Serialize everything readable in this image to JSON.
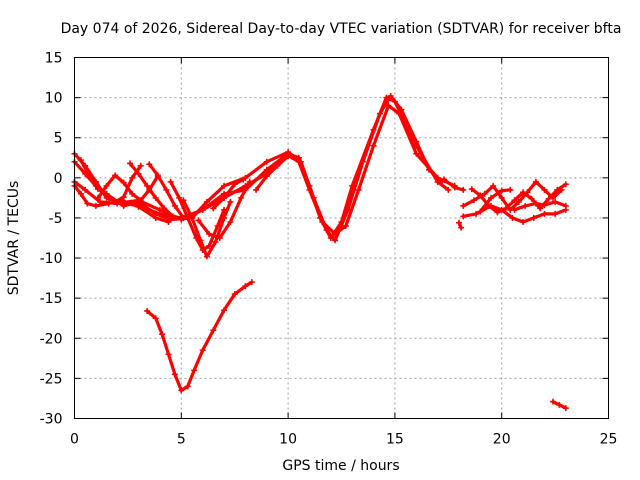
{
  "chart_data": {
    "type": "scatter",
    "title": "Day 074 of 2026, Sidereal Day-to-day VTEC variation (SDTVAR) for receiver bfta",
    "xlabel": "GPS time / hours",
    "ylabel": "SDTVAR / TECUs",
    "xlim": [
      0,
      25
    ],
    "ylim": [
      -30,
      15
    ],
    "xticks": [
      0,
      5,
      10,
      15,
      20,
      25
    ],
    "yticks": [
      15,
      10,
      5,
      0,
      -5,
      -10,
      -15,
      -20,
      -25,
      -30
    ],
    "grid": true,
    "legend": "none",
    "color": "#ff0000",
    "series": [
      {
        "name": "trace-1",
        "points": [
          [
            0,
            3
          ],
          [
            0.5,
            1.5
          ],
          [
            1,
            -0.5
          ],
          [
            1.5,
            -2.5
          ],
          [
            2,
            -3
          ],
          [
            3,
            -3.5
          ],
          [
            4,
            -4.5
          ],
          [
            5,
            -5
          ],
          [
            6,
            -4
          ],
          [
            7,
            -2
          ],
          [
            8,
            -1.5
          ],
          [
            9,
            1
          ],
          [
            10,
            3
          ],
          [
            10.5,
            2.5
          ],
          [
            11,
            -1
          ],
          [
            11.5,
            -5
          ],
          [
            12,
            -7.5
          ],
          [
            12.5,
            -5.5
          ],
          [
            13,
            -1
          ],
          [
            14,
            6
          ],
          [
            14.6,
            10
          ],
          [
            15,
            9.5
          ],
          [
            16,
            4
          ],
          [
            17,
            -0.5
          ],
          [
            17.5,
            -1.5
          ]
        ]
      },
      {
        "name": "trace-2",
        "points": [
          [
            0,
            2
          ],
          [
            0.5,
            0.5
          ],
          [
            1,
            -1
          ],
          [
            1.5,
            -2
          ],
          [
            2.3,
            -3.5
          ],
          [
            3,
            -3
          ],
          [
            3.8,
            -4.5
          ],
          [
            4.5,
            -5.2
          ],
          [
            5.5,
            -5
          ],
          [
            6.2,
            -3
          ],
          [
            7,
            -1
          ],
          [
            8,
            0
          ],
          [
            9,
            2
          ],
          [
            10,
            3.2
          ],
          [
            10.6,
            2
          ],
          [
            11.2,
            -2.5
          ],
          [
            11.8,
            -6.5
          ],
          [
            12.2,
            -7.8
          ],
          [
            12.8,
            -4
          ],
          [
            13.5,
            2
          ],
          [
            14.3,
            8
          ],
          [
            14.8,
            10.2
          ],
          [
            15.3,
            8.5
          ],
          [
            16,
            4.5
          ],
          [
            16.6,
            1
          ],
          [
            17.2,
            -0.5
          ]
        ]
      },
      {
        "name": "trace-3",
        "points": [
          [
            0,
            -0.5
          ],
          [
            0.5,
            -1.5
          ],
          [
            1.2,
            -3
          ],
          [
            2,
            -3.2
          ],
          [
            3,
            -2.8
          ],
          [
            4,
            -4
          ],
          [
            5,
            -5.2
          ],
          [
            6,
            -4
          ],
          [
            7,
            -2.5
          ],
          [
            8,
            -1
          ],
          [
            9,
            0.5
          ],
          [
            10,
            2.8
          ],
          [
            10.5,
            2
          ],
          [
            11,
            -1.5
          ],
          [
            11.6,
            -5.5
          ],
          [
            12.2,
            -7
          ],
          [
            12.7,
            -6
          ],
          [
            13.3,
            -1.5
          ],
          [
            14,
            4
          ],
          [
            14.7,
            9
          ],
          [
            15.2,
            8
          ],
          [
            16,
            3
          ],
          [
            17,
            0
          ],
          [
            17.8,
            -1
          ]
        ]
      },
      {
        "name": "trace-4",
        "points": [
          [
            0,
            -1
          ],
          [
            0.3,
            -2
          ],
          [
            0.6,
            -3.2
          ],
          [
            1,
            -3.5
          ],
          [
            1.6,
            -3.2
          ],
          [
            2.2,
            -2.8
          ],
          [
            3,
            -3.6
          ],
          [
            3.8,
            -5
          ],
          [
            4.4,
            -5.5
          ]
        ]
      },
      {
        "name": "trace-5",
        "points": [
          [
            0.3,
            2.2
          ],
          [
            0.7,
            0.2
          ],
          [
            1.1,
            -1.4
          ],
          [
            1.5,
            -2
          ],
          [
            1.9,
            -3
          ],
          [
            2.3,
            -2.4
          ],
          [
            2.7,
            0
          ],
          [
            3.1,
            1.5
          ]
        ]
      },
      {
        "name": "trace-6",
        "points": [
          [
            1.1,
            -2.5
          ],
          [
            1.5,
            -1
          ],
          [
            1.9,
            0.3
          ],
          [
            2.3,
            -0.6
          ],
          [
            2.7,
            -2
          ],
          [
            3.1,
            -2.8
          ],
          [
            3.5,
            -1.5
          ],
          [
            3.9,
            0.2
          ]
        ]
      },
      {
        "name": "trace-7",
        "points": [
          [
            2.6,
            1.8
          ],
          [
            3,
            0.5
          ],
          [
            3.4,
            -1
          ],
          [
            3.8,
            -2.5
          ],
          [
            4.2,
            -3.8
          ],
          [
            4.6,
            -4.8
          ],
          [
            5,
            -5.2
          ]
        ]
      },
      {
        "name": "trace-8",
        "points": [
          [
            3.5,
            1.7
          ],
          [
            3.9,
            0.3
          ],
          [
            4.3,
            -1.5
          ],
          [
            4.7,
            -3.5
          ],
          [
            5.1,
            -5
          ]
        ]
      },
      {
        "name": "trace-9",
        "points": [
          [
            4.5,
            -0.5
          ],
          [
            4.9,
            -2.5
          ],
          [
            5.3,
            -5
          ],
          [
            5.7,
            -7.5
          ],
          [
            6,
            -9
          ],
          [
            6.3,
            -8.5
          ],
          [
            6.7,
            -6
          ],
          [
            7,
            -4
          ]
        ]
      },
      {
        "name": "trace-10",
        "points": [
          [
            5.1,
            -2.8
          ],
          [
            5.5,
            -5
          ],
          [
            5.9,
            -7.8
          ],
          [
            6.2,
            -9.8
          ],
          [
            6.6,
            -8
          ],
          [
            7,
            -5
          ],
          [
            7.3,
            -3
          ]
        ]
      },
      {
        "name": "trace-11",
        "points": [
          [
            5.8,
            -5.3
          ],
          [
            6.3,
            -7
          ],
          [
            6.8,
            -7.5
          ],
          [
            7.3,
            -5.5
          ],
          [
            7.8,
            -2.5
          ],
          [
            8.2,
            -0.5
          ]
        ]
      },
      {
        "name": "trace-12",
        "points": [
          [
            6.5,
            -3.8
          ],
          [
            7,
            -2.5
          ],
          [
            7.5,
            -0.8
          ],
          [
            7.9,
            -0.2
          ]
        ]
      },
      {
        "name": "trace-13",
        "points": [
          [
            8.5,
            -1.5
          ],
          [
            9,
            0.2
          ],
          [
            9.5,
            1.5
          ],
          [
            10,
            2.7
          ],
          [
            10.2,
            2.6
          ]
        ]
      },
      {
        "name": "trace-14",
        "points": [
          [
            17.3,
            -0.2
          ],
          [
            17.8,
            -1.2
          ],
          [
            18.2,
            -1.5
          ]
        ]
      },
      {
        "name": "trace-15",
        "points": [
          [
            18,
            -5.6
          ],
          [
            18.1,
            -6.2
          ]
        ]
      },
      {
        "name": "trace-16",
        "points": [
          [
            18.2,
            -4.8
          ],
          [
            18.8,
            -4.5
          ],
          [
            19.5,
            -3.5
          ],
          [
            20,
            -4
          ],
          [
            20.5,
            -5
          ],
          [
            21,
            -5.5
          ],
          [
            21.5,
            -5
          ],
          [
            22,
            -4.5
          ],
          [
            22.5,
            -4.5
          ],
          [
            23,
            -4
          ]
        ]
      },
      {
        "name": "trace-17",
        "points": [
          [
            18.2,
            -3.5
          ],
          [
            18.7,
            -2.8
          ],
          [
            19.2,
            -2
          ],
          [
            19.6,
            -1
          ],
          [
            20,
            -2.5
          ],
          [
            20.4,
            -4
          ],
          [
            20.8,
            -3
          ],
          [
            21.2,
            -1.8
          ],
          [
            21.6,
            -0.5
          ],
          [
            22,
            -1.5
          ],
          [
            22.4,
            -2.5
          ],
          [
            22.8,
            -1.5
          ]
        ]
      },
      {
        "name": "trace-18",
        "points": [
          [
            18.6,
            -1.4
          ],
          [
            19,
            -2.2
          ],
          [
            19.4,
            -3.5
          ],
          [
            19.8,
            -4.3
          ],
          [
            20.2,
            -3.8
          ],
          [
            20.6,
            -2.8
          ],
          [
            21,
            -1.8
          ],
          [
            21.4,
            -2.6
          ],
          [
            21.8,
            -3.8
          ],
          [
            22.2,
            -2.6
          ],
          [
            22.6,
            -1.5
          ],
          [
            23,
            -0.8
          ]
        ]
      },
      {
        "name": "trace-19",
        "points": [
          [
            19,
            -4.2
          ],
          [
            19.5,
            -2.5
          ],
          [
            20,
            -1.6
          ],
          [
            20.4,
            -1.5
          ]
        ]
      },
      {
        "name": "trace-20",
        "points": [
          [
            20.6,
            -4
          ],
          [
            21.1,
            -3.5
          ],
          [
            21.6,
            -3.2
          ],
          [
            22,
            -3.4
          ],
          [
            22.5,
            -3
          ],
          [
            23,
            -3.5
          ]
        ]
      },
      {
        "name": "trace-21",
        "points": [
          [
            3.4,
            -16.6
          ],
          [
            3.8,
            -17.5
          ],
          [
            4.1,
            -19.5
          ],
          [
            4.4,
            -22
          ],
          [
            4.7,
            -24.5
          ],
          [
            5,
            -26.5
          ],
          [
            5.3,
            -26
          ],
          [
            5.6,
            -24
          ],
          [
            6,
            -21.5
          ],
          [
            6.5,
            -19
          ],
          [
            7,
            -16.5
          ],
          [
            7.5,
            -14.5
          ],
          [
            8,
            -13.5
          ],
          [
            8.3,
            -13
          ]
        ]
      },
      {
        "name": "trace-22",
        "points": [
          [
            22.4,
            -27.9
          ],
          [
            22.7,
            -28.3
          ],
          [
            23,
            -28.7
          ]
        ]
      }
    ]
  }
}
